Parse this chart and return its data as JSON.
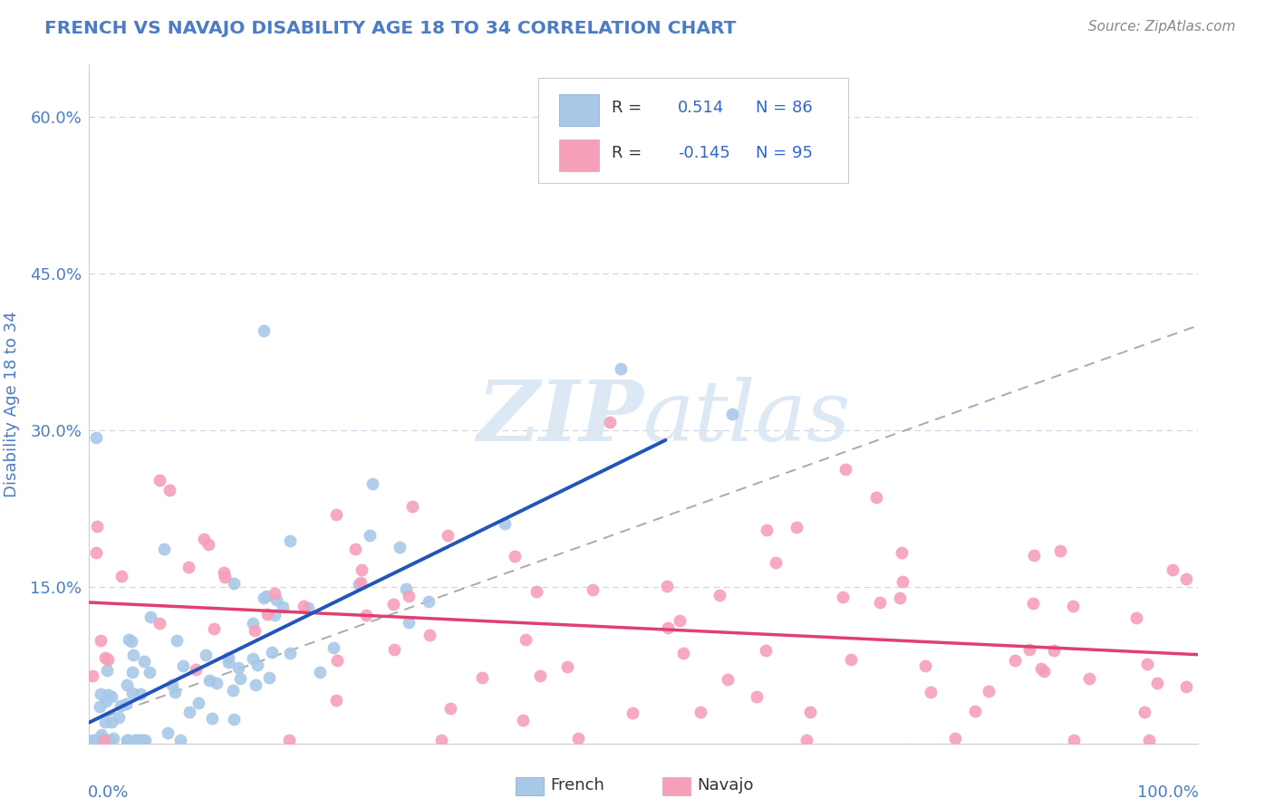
{
  "title": "FRENCH VS NAVAJO DISABILITY AGE 18 TO 34 CORRELATION CHART",
  "source": "Source: ZipAtlas.com",
  "ylabel": "Disability Age 18 to 34",
  "xlim": [
    0,
    1
  ],
  "ylim": [
    0,
    0.65
  ],
  "ytick_vals": [
    0.0,
    0.15,
    0.3,
    0.45,
    0.6
  ],
  "ytick_labels": [
    "",
    "15.0%",
    "30.0%",
    "45.0%",
    "60.0%"
  ],
  "french_R": 0.514,
  "french_N": 86,
  "navajo_R": -0.145,
  "navajo_N": 95,
  "french_color": "#a8c8e8",
  "navajo_color": "#f5a0b8",
  "french_line_color": "#2255bb",
  "navajo_line_color": "#e04070",
  "title_color": "#4a7cc7",
  "axis_label_color": "#4a7cc7",
  "watermark_color": "#dde8f5",
  "background_color": "#ffffff",
  "grid_color": "#c8d4e8",
  "legend_text_color": "#3366cc",
  "source_color": "#888888",
  "french_scatter_seed": 42,
  "navajo_scatter_seed": 99,
  "french_slope": 0.52,
  "french_intercept": 0.02,
  "navajo_slope": -0.05,
  "navajo_intercept": 0.135,
  "dashed_slope": 0.38,
  "dashed_intercept": 0.02
}
